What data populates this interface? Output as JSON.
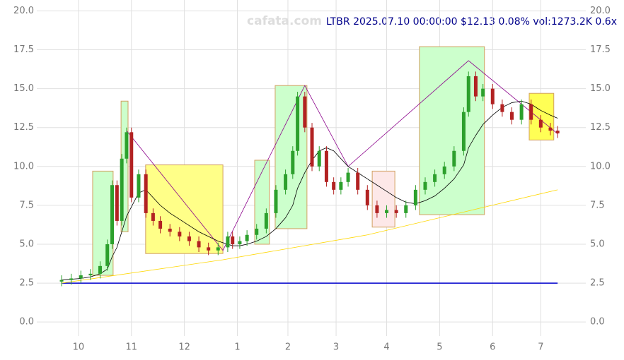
{
  "chart_data": {
    "type": "candlestick",
    "title": "LTBR 2025.07.10 00:00:00 $12.13 0.08% vol:1273.2K 0.6x",
    "watermark": "cafata.com",
    "x": [
      -7,
      -3,
      1,
      5,
      9,
      12,
      14,
      16,
      18,
      20,
      22,
      25,
      28,
      31,
      34,
      38,
      42,
      46,
      50,
      54,
      58,
      62,
      64,
      67,
      70,
      74,
      78,
      82,
      86,
      89,
      91,
      94,
      97,
      100,
      103,
      106,
      109,
      112,
      116,
      120,
      124,
      128,
      132,
      136,
      140,
      144,
      148,
      152,
      156,
      160,
      162,
      165,
      168,
      172,
      176,
      180,
      184,
      188,
      192,
      196,
      199
    ],
    "open": [
      2.6,
      2.7,
      2.8,
      3.0,
      3.1,
      3.6,
      5.0,
      8.8,
      6.5,
      10.5,
      12.2,
      8.0,
      9.5,
      7.0,
      6.5,
      6.0,
      5.8,
      5.5,
      5.2,
      4.8,
      4.6,
      4.8,
      5.5,
      5.0,
      5.2,
      5.6,
      6.0,
      7.0,
      8.5,
      9.5,
      11.0,
      14.5,
      12.5,
      10.0,
      11.0,
      9.0,
      8.5,
      9.0,
      9.6,
      8.5,
      7.5,
      7.0,
      7.2,
      7.0,
      7.5,
      8.5,
      9.0,
      9.5,
      10.0,
      11.0,
      13.5,
      15.8,
      14.5,
      15.0,
      14.0,
      13.5,
      13.0,
      14.0,
      13.0,
      12.5,
      12.3
    ],
    "high": [
      3.0,
      3.1,
      3.3,
      3.4,
      3.9,
      5.3,
      9.1,
      9.1,
      10.8,
      12.5,
      12.5,
      9.8,
      9.8,
      7.3,
      6.8,
      6.3,
      6.1,
      5.8,
      5.5,
      5.1,
      5.1,
      5.8,
      5.8,
      5.5,
      5.9,
      6.3,
      7.3,
      8.8,
      9.8,
      11.3,
      14.8,
      14.8,
      12.8,
      11.3,
      11.3,
      9.3,
      9.3,
      9.9,
      9.9,
      8.8,
      7.8,
      7.5,
      7.5,
      7.8,
      8.8,
      9.3,
      9.8,
      10.3,
      11.3,
      13.8,
      16.1,
      16.1,
      15.3,
      15.3,
      14.3,
      13.8,
      14.3,
      14.3,
      13.3,
      12.8,
      12.6
    ],
    "low": [
      2.3,
      2.4,
      2.5,
      2.7,
      2.8,
      3.3,
      4.7,
      6.2,
      6.2,
      10.2,
      7.7,
      7.7,
      6.7,
      6.2,
      5.7,
      5.5,
      5.2,
      4.9,
      4.5,
      4.3,
      4.3,
      4.5,
      4.7,
      4.7,
      4.9,
      5.3,
      5.7,
      6.7,
      8.2,
      9.2,
      10.7,
      12.2,
      9.7,
      9.7,
      8.7,
      8.2,
      8.2,
      8.7,
      8.2,
      7.2,
      6.7,
      6.7,
      6.7,
      6.7,
      7.2,
      8.2,
      8.7,
      9.2,
      9.7,
      10.7,
      13.2,
      14.2,
      14.2,
      13.7,
      13.2,
      12.7,
      12.7,
      12.7,
      12.2,
      12.0,
      11.83
    ],
    "close": [
      2.7,
      2.8,
      3.0,
      3.1,
      3.6,
      5.0,
      8.8,
      6.5,
      10.5,
      12.2,
      8.0,
      9.5,
      7.0,
      6.5,
      6.0,
      5.8,
      5.5,
      5.2,
      4.8,
      4.6,
      4.8,
      5.5,
      5.0,
      5.2,
      5.6,
      6.0,
      7.0,
      8.5,
      9.5,
      11.0,
      14.5,
      12.5,
      10.0,
      11.0,
      9.0,
      8.5,
      9.0,
      9.6,
      8.5,
      7.5,
      7.0,
      7.2,
      7.0,
      7.5,
      8.5,
      9.0,
      9.5,
      10.0,
      11.0,
      13.5,
      15.8,
      14.5,
      15.0,
      14.0,
      13.5,
      13.0,
      14.0,
      13.0,
      12.5,
      12.3,
      12.13
    ],
    "up_color": "#2ca02c",
    "down_color": "#b22222",
    "ma": {
      "color": "#000000",
      "values": [
        2.7,
        2.75,
        2.8,
        2.9,
        3.1,
        3.4,
        4.2,
        4.8,
        5.8,
        6.8,
        7.4,
        8.3,
        8.5,
        8.0,
        7.5,
        7.0,
        6.6,
        6.2,
        5.8,
        5.5,
        5.2,
        5.0,
        4.9,
        4.9,
        5.0,
        5.2,
        5.5,
        6.0,
        6.7,
        7.5,
        8.6,
        9.6,
        10.4,
        11.0,
        11.2,
        11.0,
        10.5,
        10.0,
        9.6,
        9.2,
        8.8,
        8.4,
        8.0,
        7.7,
        7.6,
        7.8,
        8.1,
        8.6,
        9.2,
        10.1,
        11.2,
        12.0,
        12.7,
        13.3,
        13.8,
        14.1,
        14.2,
        14.0,
        13.6,
        13.3,
        13.1
      ]
    },
    "slow_ma": {
      "color": "#ffd700",
      "x": [
        -7,
        60,
        120,
        199
      ],
      "values": [
        2.5,
        4.0,
        5.6,
        8.5
      ]
    },
    "zigzag": {
      "color": "#8b008b",
      "x": [
        20,
        60,
        94,
        112,
        162,
        199
      ],
      "values": [
        12.3,
        4.6,
        15.2,
        10.0,
        16.8,
        12.1
      ]
    },
    "baseline": {
      "color": "#0000cd",
      "value": 2.5
    },
    "zones": [
      {
        "x0": 5.9,
        "x1": 14.4,
        "y0": 3.0,
        "y1": 9.7,
        "color": "#ccffcc"
      },
      {
        "x0": 17.7,
        "x1": 20.6,
        "y0": 5.8,
        "y1": 14.2,
        "color": "#ccffcc"
      },
      {
        "x0": 27.9,
        "x1": 60,
        "y0": 4.4,
        "y1": 10.1,
        "color": "#ffff88"
      },
      {
        "x0": 73.2,
        "x1": 79.3,
        "y0": 5.0,
        "y1": 10.4,
        "color": "#ccffcc"
      },
      {
        "x0": 81.7,
        "x1": 94.9,
        "y0": 6.0,
        "y1": 15.2,
        "color": "#ccffcc"
      },
      {
        "x0": 122,
        "x1": 131.4,
        "y0": 6.1,
        "y1": 9.7,
        "color": "#fde8e8"
      },
      {
        "x0": 141.6,
        "x1": 168.6,
        "y0": 6.9,
        "y1": 17.7,
        "color": "#ccffcc"
      },
      {
        "x0": 187.2,
        "x1": 197.4,
        "y0": 11.7,
        "y1": 14.7,
        "color": "#ffff55"
      }
    ],
    "xlim": [
      -17.3,
      210.7
    ],
    "xticks": [
      {
        "value": 0,
        "label": "10"
      },
      {
        "value": 22,
        "label": "11"
      },
      {
        "value": 44,
        "label": "12"
      },
      {
        "value": 66,
        "label": "1"
      },
      {
        "value": 87,
        "label": "2"
      },
      {
        "value": 107,
        "label": "3"
      },
      {
        "value": 128,
        "label": "4"
      },
      {
        "value": 150,
        "label": "5"
      },
      {
        "value": 172,
        "label": "6"
      },
      {
        "value": 192,
        "label": "7"
      }
    ],
    "ylim": [
      -0.9,
      20.7
    ],
    "yticks": [
      {
        "value": 0,
        "label": "0.0"
      },
      {
        "value": 2.5,
        "label": "2.5"
      },
      {
        "value": 5,
        "label": "5.0"
      },
      {
        "value": 7.5,
        "label": "7.5"
      },
      {
        "value": 10,
        "label": "10.0"
      },
      {
        "value": 12.5,
        "label": "12.5"
      },
      {
        "value": 15,
        "label": "15.0"
      },
      {
        "value": 17.5,
        "label": "17.5"
      },
      {
        "value": 20,
        "label": "20.0"
      }
    ],
    "grid": true
  }
}
